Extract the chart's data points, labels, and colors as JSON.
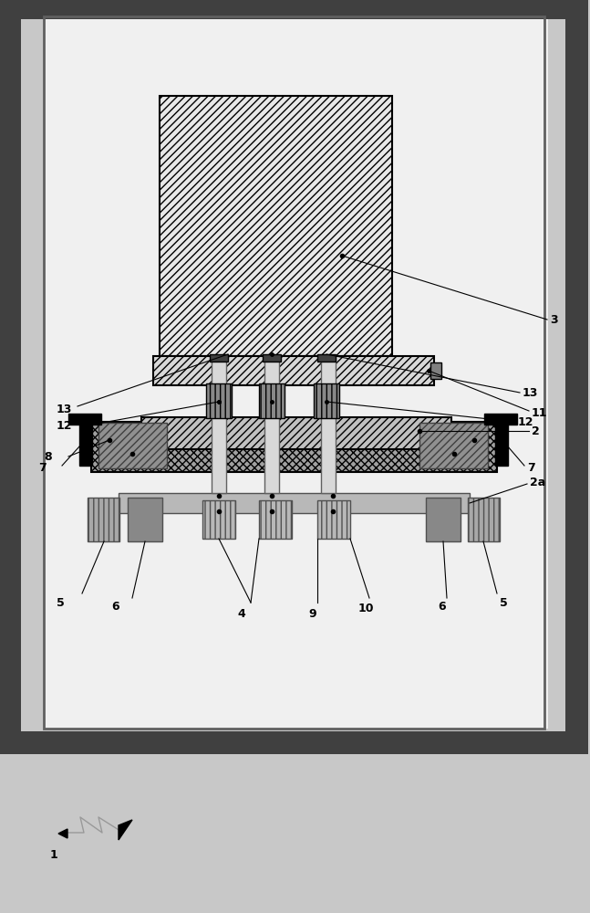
{
  "fig_w": 6.47,
  "fig_h": 10.0,
  "dpi": 100,
  "bg_outer": "#c8c8c8",
  "bg_inner": "#f5f5f5",
  "white": "#ffffff",
  "black": "#000000",
  "gray_dark": "#404040",
  "gray_mid": "#707070",
  "gray_light": "#b8b8b8",
  "gray_hatch": "#d0d0d0",
  "gray_block": "#909090",
  "gray_rod": "#c0c0c0"
}
